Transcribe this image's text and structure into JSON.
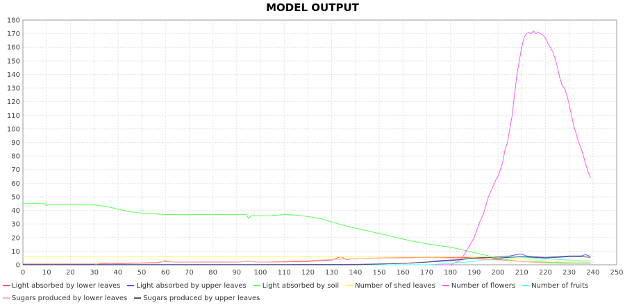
{
  "chart_data": {
    "type": "line",
    "title": "MODEL OUTPUT",
    "xlabel": "",
    "ylabel": "",
    "xlim": [
      0,
      250
    ],
    "ylim": [
      0,
      180
    ],
    "x_ticks": [
      0,
      10,
      20,
      30,
      40,
      50,
      60,
      70,
      80,
      90,
      100,
      110,
      120,
      130,
      140,
      150,
      160,
      170,
      180,
      190,
      200,
      210,
      220,
      230,
      240,
      250
    ],
    "y_ticks": [
      0,
      10,
      20,
      30,
      40,
      50,
      60,
      70,
      80,
      90,
      100,
      110,
      120,
      130,
      140,
      150,
      160,
      170,
      180
    ],
    "grid": true,
    "legend_position": "bottom",
    "series": [
      {
        "name": "Light absorbed by lower leaves",
        "color": "#ff5555",
        "points": [
          [
            0,
            0.5
          ],
          [
            30,
            0.5
          ],
          [
            40,
            0.8
          ],
          [
            50,
            1.2
          ],
          [
            57,
            1.5
          ],
          [
            60,
            3
          ],
          [
            63,
            2
          ],
          [
            70,
            2
          ],
          [
            80,
            2
          ],
          [
            90,
            2
          ],
          [
            95,
            2.5
          ],
          [
            100,
            2
          ],
          [
            110,
            2.2
          ],
          [
            120,
            2.5
          ],
          [
            130,
            3.5
          ],
          [
            134,
            6
          ],
          [
            136,
            4
          ],
          [
            140,
            4.5
          ],
          [
            150,
            5
          ],
          [
            160,
            5.2
          ],
          [
            170,
            5.5
          ],
          [
            180,
            5.5
          ],
          [
            185,
            5.5
          ],
          [
            190,
            5
          ],
          [
            195,
            4.5
          ],
          [
            200,
            4
          ],
          [
            205,
            3
          ],
          [
            210,
            2.5
          ],
          [
            215,
            2
          ],
          [
            220,
            1.5
          ],
          [
            230,
            1
          ],
          [
            239,
            1
          ]
        ]
      },
      {
        "name": "Light absorbed by upper leaves",
        "color": "#5555ff",
        "points": [
          [
            0,
            0.2
          ],
          [
            100,
            0.2
          ],
          [
            140,
            0.3
          ],
          [
            150,
            0.6
          ],
          [
            160,
            1
          ],
          [
            170,
            2
          ],
          [
            175,
            3
          ],
          [
            180,
            3.5
          ],
          [
            185,
            4
          ],
          [
            190,
            5
          ],
          [
            195,
            5.5
          ],
          [
            200,
            6
          ],
          [
            205,
            6.5
          ],
          [
            208,
            7.5
          ],
          [
            210,
            8
          ],
          [
            212,
            6.5
          ],
          [
            215,
            6
          ],
          [
            220,
            5.5
          ],
          [
            225,
            6
          ],
          [
            230,
            6.5
          ],
          [
            235,
            6.5
          ],
          [
            237,
            7.5
          ],
          [
            239,
            6
          ]
        ]
      },
      {
        "name": "Light absorbed by soil",
        "color": "#55ff55",
        "points": [
          [
            0,
            45
          ],
          [
            9,
            45
          ],
          [
            10,
            43.5
          ],
          [
            11,
            44.5
          ],
          [
            20,
            44.3
          ],
          [
            30,
            44
          ],
          [
            35,
            43
          ],
          [
            40,
            41
          ],
          [
            45,
            39
          ],
          [
            50,
            38
          ],
          [
            55,
            37.5
          ],
          [
            60,
            37
          ],
          [
            70,
            36.8
          ],
          [
            75,
            37
          ],
          [
            80,
            37
          ],
          [
            90,
            37
          ],
          [
            94,
            37
          ],
          [
            95,
            34
          ],
          [
            96,
            36
          ],
          [
            100,
            36
          ],
          [
            105,
            36
          ],
          [
            110,
            37
          ],
          [
            115,
            36.5
          ],
          [
            120,
            35.5
          ],
          [
            125,
            34
          ],
          [
            130,
            31.5
          ],
          [
            135,
            29
          ],
          [
            140,
            27
          ],
          [
            145,
            25
          ],
          [
            150,
            23
          ],
          [
            155,
            21
          ],
          [
            160,
            19
          ],
          [
            165,
            17
          ],
          [
            170,
            15.5
          ],
          [
            175,
            14
          ],
          [
            180,
            13
          ],
          [
            185,
            11
          ],
          [
            190,
            9
          ],
          [
            195,
            7
          ],
          [
            200,
            5
          ],
          [
            205,
            3.5
          ],
          [
            210,
            2.5
          ],
          [
            220,
            2
          ],
          [
            230,
            1.5
          ],
          [
            239,
            1.5
          ]
        ]
      },
      {
        "name": "Number of shed leaves",
        "color": "#ffff55",
        "points": [
          [
            0,
            6
          ],
          [
            50,
            6
          ],
          [
            100,
            6
          ],
          [
            150,
            6
          ],
          [
            180,
            6
          ],
          [
            190,
            6
          ],
          [
            200,
            5.5
          ],
          [
            210,
            4.5
          ],
          [
            215,
            3.5
          ],
          [
            220,
            3
          ],
          [
            230,
            2.5
          ],
          [
            239,
            2.5
          ]
        ]
      },
      {
        "name": "Number of flowers",
        "color": "#ff55ff",
        "points": [
          [
            0,
            0
          ],
          [
            150,
            0
          ],
          [
            180,
            0
          ],
          [
            184,
            3
          ],
          [
            186,
            8
          ],
          [
            188,
            14
          ],
          [
            190,
            20
          ],
          [
            192,
            30
          ],
          [
            194,
            38
          ],
          [
            196,
            50
          ],
          [
            198,
            58
          ],
          [
            199,
            62
          ],
          [
            200,
            65
          ],
          [
            201,
            70
          ],
          [
            202,
            75
          ],
          [
            203,
            85
          ],
          [
            204,
            90
          ],
          [
            205,
            100
          ],
          [
            206,
            110
          ],
          [
            207,
            125
          ],
          [
            208,
            140
          ],
          [
            209,
            150
          ],
          [
            210,
            160
          ],
          [
            211,
            167
          ],
          [
            212,
            170
          ],
          [
            213,
            171
          ],
          [
            214,
            170
          ],
          [
            215,
            172
          ],
          [
            216,
            170
          ],
          [
            217,
            171
          ],
          [
            218,
            170
          ],
          [
            219,
            169
          ],
          [
            220,
            167
          ],
          [
            221,
            163
          ],
          [
            222,
            160
          ],
          [
            223,
            157
          ],
          [
            224,
            152
          ],
          [
            225,
            146
          ],
          [
            226,
            138
          ],
          [
            227,
            132
          ],
          [
            228,
            130
          ],
          [
            229,
            125
          ],
          [
            230,
            118
          ],
          [
            231,
            110
          ],
          [
            232,
            102
          ],
          [
            233,
            96
          ],
          [
            234,
            90
          ],
          [
            235,
            86
          ],
          [
            236,
            80
          ],
          [
            237,
            74
          ],
          [
            238,
            68
          ],
          [
            239,
            64
          ]
        ]
      },
      {
        "name": "Number of fruits",
        "color": "#55ffff",
        "points": [
          [
            0,
            0
          ],
          [
            170,
            0
          ],
          [
            180,
            1
          ],
          [
            190,
            2.5
          ],
          [
            195,
            4
          ],
          [
            200,
            5
          ],
          [
            205,
            6
          ],
          [
            210,
            5.5
          ],
          [
            215,
            5
          ],
          [
            220,
            4.5
          ],
          [
            225,
            4
          ],
          [
            230,
            3.5
          ],
          [
            235,
            3
          ],
          [
            239,
            3
          ]
        ]
      },
      {
        "name": "Sugars produced by lower leaves",
        "color": "#ffafaf",
        "points": [
          [
            0,
            0
          ],
          [
            30,
            0
          ],
          [
            33,
            1.5
          ],
          [
            36,
            1
          ],
          [
            40,
            1.2
          ],
          [
            50,
            1.5
          ],
          [
            57,
            2
          ],
          [
            60,
            2.5
          ],
          [
            63,
            2
          ],
          [
            70,
            2
          ],
          [
            80,
            1.8
          ],
          [
            90,
            2
          ],
          [
            95,
            2.5
          ],
          [
            100,
            2
          ],
          [
            110,
            2.5
          ],
          [
            120,
            3
          ],
          [
            130,
            4
          ],
          [
            140,
            4.5
          ],
          [
            150,
            5
          ],
          [
            160,
            5
          ],
          [
            170,
            5.5
          ],
          [
            180,
            5
          ],
          [
            190,
            4.5
          ],
          [
            200,
            3.5
          ],
          [
            210,
            2.5
          ],
          [
            220,
            1.5
          ],
          [
            230,
            1
          ],
          [
            239,
            1
          ]
        ]
      },
      {
        "name": "Sugars produced by upper leaves",
        "color": "#555555",
        "points": [
          [
            0,
            0
          ],
          [
            100,
            0
          ],
          [
            140,
            0
          ],
          [
            150,
            0.5
          ],
          [
            160,
            1
          ],
          [
            170,
            2
          ],
          [
            180,
            3
          ],
          [
            185,
            4
          ],
          [
            190,
            5
          ],
          [
            195,
            5.5
          ],
          [
            200,
            5
          ],
          [
            205,
            5.5
          ],
          [
            210,
            6
          ],
          [
            215,
            5.5
          ],
          [
            220,
            5
          ],
          [
            225,
            5.5
          ],
          [
            230,
            6
          ],
          [
            235,
            6
          ],
          [
            239,
            5.5
          ]
        ]
      }
    ]
  }
}
